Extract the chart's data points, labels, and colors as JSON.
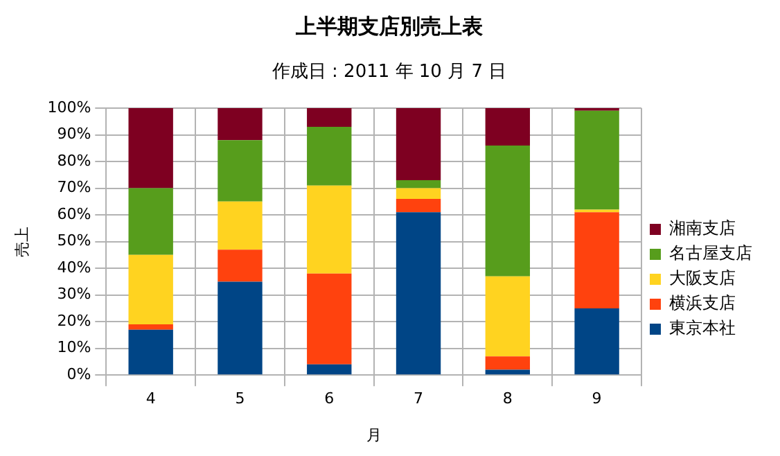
{
  "chart_data": {
    "type": "bar",
    "title": "上半期支店別売上表",
    "subtitle": "作成日 : 2011 年 10 月 7 日",
    "xlabel": "月",
    "ylabel": "売上",
    "stacked": true,
    "categories": [
      "4",
      "5",
      "6",
      "7",
      "8",
      "9"
    ],
    "series": [
      {
        "name": "東京本社",
        "color": "#004586",
        "values": [
          17,
          35,
          4,
          61,
          2,
          25
        ]
      },
      {
        "name": "横浜支店",
        "color": "#ff420e",
        "values": [
          2,
          12,
          34,
          5,
          5,
          36
        ]
      },
      {
        "name": "大阪支店",
        "color": "#ffd320",
        "values": [
          26,
          18,
          33,
          4,
          30,
          1
        ]
      },
      {
        "name": "名古屋支店",
        "color": "#579d1c",
        "values": [
          25,
          23,
          22,
          3,
          49,
          37
        ]
      },
      {
        "name": "湘南支店",
        "color": "#7e0021",
        "values": [
          30,
          12,
          7,
          27,
          14,
          1
        ]
      }
    ],
    "ylim": [
      0,
      100
    ],
    "yticks": [
      {
        "value": 0,
        "label": "0%"
      },
      {
        "value": 10,
        "label": "10%"
      },
      {
        "value": 20,
        "label": "20%"
      },
      {
        "value": 30,
        "label": "30%"
      },
      {
        "value": 40,
        "label": "40%"
      },
      {
        "value": 50,
        "label": "50%"
      },
      {
        "value": 60,
        "label": "60%"
      },
      {
        "value": 70,
        "label": "70%"
      },
      {
        "value": 80,
        "label": "80%"
      },
      {
        "value": 90,
        "label": "90%"
      },
      {
        "value": 100,
        "label": "100%"
      }
    ],
    "grid": true,
    "legend": "right"
  }
}
